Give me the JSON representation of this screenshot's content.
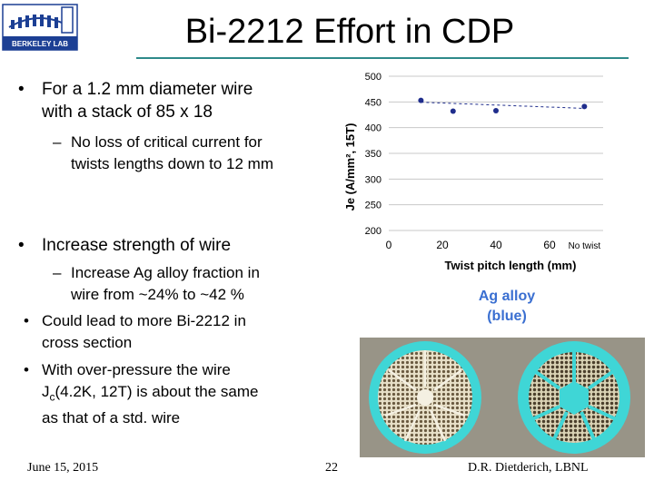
{
  "slide": {
    "title": "Bi-2212 Effort in CDP",
    "logo_text": "BERKELEY LAB",
    "bullets": [
      {
        "line1": "For a 1.2 mm diameter wire",
        "line2": "with a stack of 85 x 18"
      },
      {
        "line1": "No loss of critical current for",
        "line2": "twists lengths down to 12 mm"
      },
      {
        "line1": "Increase strength of wire"
      },
      {
        "line1": "Increase Ag alloy fraction in",
        "line2": "wire from ~24% to ~42 %"
      },
      {
        "line1": "Could lead to more Bi-2212 in",
        "line2": "cross section"
      },
      {
        "line1": "With over-pressure the wire",
        "line2_pre": "J",
        "line2_sub": "c",
        "line2_post": "(4.2K, 12T) is about the same",
        "line3": "as that of a std. wire"
      }
    ],
    "bullet_char": "•",
    "dash_char": "–",
    "ag_label": {
      "line1": "Ag alloy",
      "line2": "(blue)"
    },
    "colors": {
      "accent_rule": "#2e8a8a",
      "ag_label": "#3a6fd1",
      "ag_alloy": "#3fd6d6",
      "point": "#1f2d8c"
    }
  },
  "footer": {
    "date": "June 15, 2015",
    "page": "22",
    "author": "D.R. Dietderich, LBNL"
  },
  "chart_data": {
    "type": "scatter",
    "ylabel": "Je (A/mm², 15T)",
    "xlabel": "Twist pitch length (mm)",
    "ylim": [
      200,
      500
    ],
    "yticks": [
      "500",
      "450",
      "400",
      "350",
      "300",
      "250",
      "200"
    ],
    "xticks": [
      "0",
      "20",
      "40",
      "60",
      "No twist"
    ],
    "grid": true,
    "points": [
      {
        "x": 12,
        "y": 453
      },
      {
        "x": 24,
        "y": 432
      },
      {
        "x": 40,
        "y": 433
      },
      {
        "x": "No twist",
        "y": 441
      }
    ]
  }
}
